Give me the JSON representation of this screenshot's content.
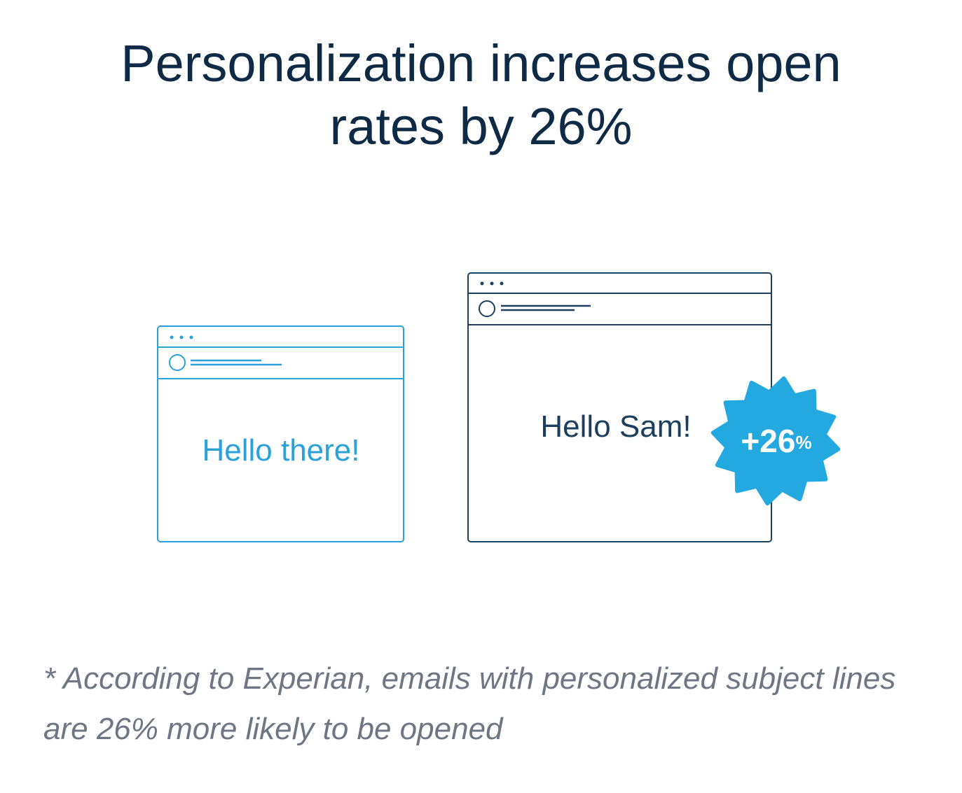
{
  "title": {
    "line1": "Personalization increases open",
    "line2": "rates by 26%"
  },
  "generic_email": {
    "greeting": "Hello there!",
    "color": "#2aa1d8"
  },
  "personalized_email": {
    "greeting": "Hello Sam!",
    "color": "#1b3f5c"
  },
  "badge": {
    "value": "+26",
    "unit": "%",
    "color": "#23a8e0"
  },
  "footnote": "* According to Experian, emails with personalized subject lines are 26% more likely to be opened",
  "colors": {
    "title": "#0e2a45",
    "footnote": "#6e7683"
  }
}
